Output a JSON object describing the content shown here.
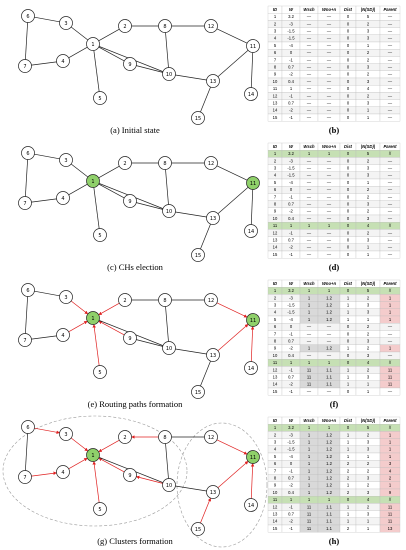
{
  "nodes": [
    "1",
    "2",
    "3",
    "4",
    "5",
    "6",
    "7",
    "8",
    "9",
    "10",
    "11",
    "12",
    "13",
    "14",
    "15"
  ],
  "panels": [
    {
      "caption": "(a) Initial state",
      "table_label": "(b)",
      "table": {
        "header": [
          "ID",
          "W",
          "Wsch",
          "Wno+n",
          "Dist",
          "|N(SD)|",
          "Parent"
        ],
        "rows": [
          [
            "1",
            "3.2",
            "—",
            "—",
            "0",
            "5",
            "—"
          ],
          [
            "2",
            "-3",
            "—",
            "—",
            "0",
            "2",
            "—"
          ],
          [
            "3",
            "-1.5",
            "—",
            "—",
            "0",
            "3",
            "—"
          ],
          [
            "4",
            "-1.5",
            "—",
            "—",
            "0",
            "3",
            "—"
          ],
          [
            "5",
            "-4",
            "—",
            "—",
            "0",
            "1",
            "—"
          ],
          [
            "6",
            "0",
            "—",
            "—",
            "0",
            "2",
            "—"
          ],
          [
            "7",
            "-1",
            "—",
            "—",
            "0",
            "2",
            "—"
          ],
          [
            "8",
            "0.7",
            "—",
            "—",
            "0",
            "3",
            "—"
          ],
          [
            "9",
            "-2",
            "—",
            "—",
            "0",
            "2",
            "—"
          ],
          [
            "10",
            "0.4",
            "—",
            "—",
            "0",
            "3",
            "—"
          ],
          [
            "11",
            "1",
            "—",
            "—",
            "0",
            "4",
            "—"
          ],
          [
            "12",
            "-1",
            "—",
            "—",
            "0",
            "2",
            "—"
          ],
          [
            "13",
            "0.7",
            "—",
            "—",
            "0",
            "3",
            "—"
          ],
          [
            "14",
            "-2",
            "—",
            "—",
            "0",
            "1",
            "—"
          ],
          [
            "15",
            "-1",
            "—",
            "—",
            "0",
            "1",
            "—"
          ]
        ]
      }
    },
    {
      "caption": "(c) CHs election",
      "table_label": "(d)",
      "table": {
        "header": [
          "ID",
          "W",
          "Wsch",
          "Wno+n",
          "Dist",
          "|N(SD)|",
          "Parent"
        ],
        "rows": [
          [
            "1",
            "3.2",
            "1",
            "1",
            "0",
            "5",
            "//"
          ],
          [
            "2",
            "-3",
            "—",
            "—",
            "0",
            "2",
            "—"
          ],
          [
            "3",
            "-1.5",
            "—",
            "—",
            "0",
            "3",
            "—"
          ],
          [
            "4",
            "-1.5",
            "—",
            "—",
            "0",
            "3",
            "—"
          ],
          [
            "5",
            "-4",
            "—",
            "—",
            "0",
            "1",
            "—"
          ],
          [
            "6",
            "0",
            "—",
            "—",
            "0",
            "2",
            "—"
          ],
          [
            "7",
            "-1",
            "—",
            "—",
            "0",
            "2",
            "—"
          ],
          [
            "8",
            "0.7",
            "—",
            "—",
            "0",
            "3",
            "—"
          ],
          [
            "9",
            "-2",
            "—",
            "—",
            "0",
            "2",
            "—"
          ],
          [
            "10",
            "0.4",
            "—",
            "—",
            "0",
            "3",
            "—"
          ],
          [
            "11",
            "1",
            "1",
            "1",
            "0",
            "4",
            "//"
          ],
          [
            "12",
            "-1",
            "—",
            "—",
            "0",
            "2",
            "—"
          ],
          [
            "13",
            "0.7",
            "—",
            "—",
            "0",
            "3",
            "—"
          ],
          [
            "14",
            "-2",
            "—",
            "—",
            "0",
            "1",
            "—"
          ],
          [
            "15",
            "-1",
            "—",
            "—",
            "0",
            "1",
            "—"
          ]
        ]
      }
    },
    {
      "caption": "(e) Routing paths formation",
      "table_label": "(f)",
      "table": {
        "header": [
          "ID",
          "W",
          "Wsch",
          "Wno+n",
          "Dist",
          "|N(SD)|",
          "Parent"
        ],
        "rows": [
          [
            "1",
            "3.2",
            "1",
            "1",
            "0",
            "5",
            "//"
          ],
          [
            "2",
            "-3",
            "1",
            "1.2",
            "1",
            "2",
            "1"
          ],
          [
            "3",
            "-1.5",
            "1",
            "1.2",
            "1",
            "3",
            "1"
          ],
          [
            "4",
            "-1.5",
            "1",
            "1.2",
            "1",
            "3",
            "1"
          ],
          [
            "5",
            "-4",
            "1",
            "1.2",
            "1",
            "1",
            "1"
          ],
          [
            "6",
            "0",
            "—",
            "—",
            "0",
            "2",
            "—"
          ],
          [
            "7",
            "-1",
            "—",
            "—",
            "0",
            "2",
            "—"
          ],
          [
            "8",
            "0.7",
            "—",
            "—",
            "0",
            "3",
            "—"
          ],
          [
            "9",
            "-2",
            "1",
            "1.2",
            "1",
            "2",
            "1"
          ],
          [
            "10",
            "0.4",
            "—",
            "—",
            "0",
            "3",
            "—"
          ],
          [
            "11",
            "1",
            "1",
            "1",
            "0",
            "4",
            "//"
          ],
          [
            "12",
            "-1",
            "11",
            "1.1",
            "1",
            "2",
            "11"
          ],
          [
            "13",
            "0.7",
            "11",
            "1.1",
            "1",
            "3",
            "11"
          ],
          [
            "14",
            "-2",
            "11",
            "1.1",
            "1",
            "1",
            "11"
          ],
          [
            "15",
            "-1",
            "—",
            "—",
            "0",
            "1",
            "—"
          ]
        ]
      }
    },
    {
      "caption": "(g) Clusters formation",
      "table_label": "(h)",
      "table": {
        "header": [
          "ID",
          "W",
          "Wsch",
          "Wno+n",
          "Dist",
          "|N(SD)|",
          "Parent"
        ],
        "rows": [
          [
            "1",
            "3.2",
            "1",
            "1",
            "0",
            "5",
            "//"
          ],
          [
            "2",
            "-3",
            "1",
            "1.2",
            "1",
            "2",
            "1"
          ],
          [
            "3",
            "-1.5",
            "1",
            "1.2",
            "1",
            "3",
            "1"
          ],
          [
            "4",
            "-1.5",
            "1",
            "1.2",
            "1",
            "3",
            "1"
          ],
          [
            "5",
            "-4",
            "1",
            "1.2",
            "1",
            "1",
            "1"
          ],
          [
            "6",
            "0",
            "1",
            "1.2",
            "2",
            "2",
            "3"
          ],
          [
            "7",
            "-1",
            "1",
            "1.2",
            "2",
            "2",
            "4"
          ],
          [
            "8",
            "0.7",
            "1",
            "1.2",
            "2",
            "3",
            "2"
          ],
          [
            "9",
            "-2",
            "1",
            "1.2",
            "1",
            "2",
            "1"
          ],
          [
            "10",
            "0.4",
            "1",
            "1.2",
            "2",
            "3",
            "9"
          ],
          [
            "11",
            "1",
            "1",
            "1",
            "0",
            "4",
            "//"
          ],
          [
            "12",
            "-1",
            "11",
            "1.1",
            "1",
            "2",
            "11"
          ],
          [
            "13",
            "0.7",
            "11",
            "1.1",
            "1",
            "3",
            "11"
          ],
          [
            "14",
            "-2",
            "11",
            "1.1",
            "1",
            "1",
            "11"
          ],
          [
            "15",
            "-1",
            "11",
            "1.1",
            "2",
            "1",
            "13"
          ]
        ]
      }
    }
  ]
}
